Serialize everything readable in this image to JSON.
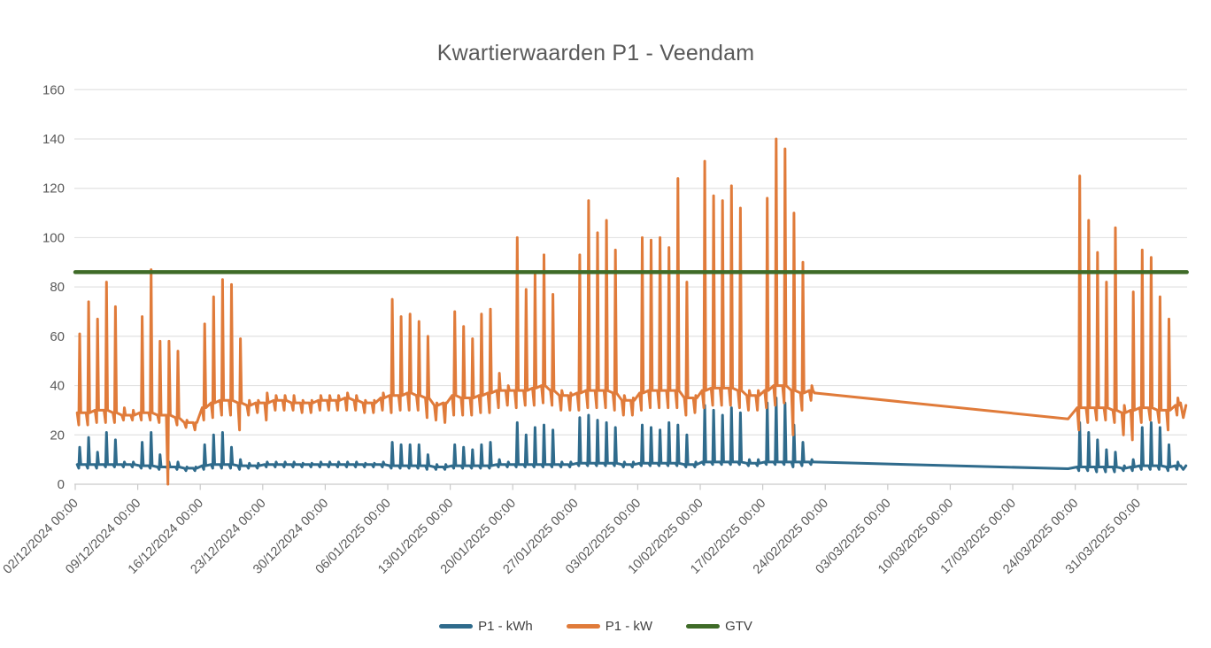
{
  "chart_data": {
    "type": "line",
    "title": "Kwartierwaarden P1 - Veendam",
    "grid": "horizontal",
    "x_axis": {
      "unit": "date-time",
      "tick_interval_days": 7,
      "day0_date": "02/12/2024",
      "range_days": [
        0,
        124.6
      ],
      "label_rotation_deg": -45,
      "tick_labels": [
        "02/12/2024 00:00",
        "09/12/2024 00:00",
        "16/12/2024 00:00",
        "23/12/2024 00:00",
        "30/12/2024 00:00",
        "06/01/2025 00:00",
        "13/01/2025 00:00",
        "20/01/2025 00:00",
        "27/01/2025 00:00",
        "03/02/2025 00:00",
        "10/02/2025 00:00",
        "17/02/2025 00:00",
        "24/02/2025 00:00",
        "03/03/2025 00:00",
        "10/03/2025 00:00",
        "17/03/2025 00:00",
        "24/03/2025 00:00",
        "31/03/2025 00:00"
      ]
    },
    "y_axis": {
      "min": 0,
      "max": 160,
      "tick_step": 20,
      "tick_labels": [
        "0",
        "20",
        "40",
        "60",
        "80",
        "100",
        "120",
        "140",
        "160"
      ]
    },
    "legend": {
      "position": "bottom",
      "entries": [
        {
          "label": "P1 - kWh",
          "color": "#2F6B8C"
        },
        {
          "label": "P1 - kW",
          "color": "#E07B3A"
        },
        {
          "label": "GTV",
          "color": "#3F6B28"
        }
      ]
    },
    "note": "day records are [day,dailyLow,dailyPeak,base]; 2-item entries are direct [day,value] points; gap in measurements between day 82.8 and 111.2",
    "series": [
      {
        "name": "P1 - kWh",
        "color": "#2F6B8C",
        "width": 3,
        "days": [
          [
            0,
            6.5,
            15,
            8
          ],
          [
            1,
            6.5,
            19,
            8
          ],
          [
            2,
            6.5,
            13,
            8
          ],
          [
            3,
            7,
            21,
            8
          ],
          [
            4,
            7,
            18,
            8
          ],
          [
            5,
            7,
            9,
            8
          ],
          [
            6,
            7,
            9,
            8
          ],
          [
            7,
            6.5,
            17,
            7.5
          ],
          [
            8,
            6.5,
            21,
            7.5
          ],
          [
            9,
            6,
            12,
            7
          ],
          [
            10,
            6,
            9,
            7
          ],
          [
            11,
            6,
            9,
            7
          ],
          [
            12,
            5.5,
            7,
            6.5
          ],
          [
            13,
            5.5,
            7,
            6.5
          ],
          [
            14,
            6,
            16,
            7.5
          ],
          [
            15,
            6.5,
            20,
            8
          ],
          [
            16,
            6.5,
            21,
            8
          ],
          [
            17,
            6.5,
            15,
            8
          ],
          [
            18,
            6,
            10,
            7.5
          ],
          [
            19,
            6.5,
            8.5,
            7.5
          ],
          [
            20,
            6.5,
            8.5,
            7.5
          ],
          [
            21,
            7,
            9,
            8
          ],
          [
            22,
            7,
            9,
            8
          ],
          [
            23,
            7,
            9,
            8
          ],
          [
            24,
            7,
            9,
            8
          ],
          [
            25,
            7,
            8.5,
            8
          ],
          [
            26,
            7,
            8.5,
            8
          ],
          [
            27,
            7,
            9,
            8
          ],
          [
            28,
            7,
            9,
            8
          ],
          [
            29,
            7,
            9,
            8
          ],
          [
            30,
            7,
            9,
            8
          ],
          [
            31,
            7,
            9,
            8
          ],
          [
            32,
            7,
            8.5,
            8
          ],
          [
            33,
            7,
            8.5,
            8
          ],
          [
            34,
            7,
            9,
            8
          ],
          [
            35,
            6.5,
            17,
            7.5
          ],
          [
            36,
            6.5,
            16,
            7.5
          ],
          [
            37,
            6.5,
            16,
            7.5
          ],
          [
            38,
            6.5,
            16,
            7.5
          ],
          [
            39,
            6,
            12,
            7.5
          ],
          [
            40,
            6,
            8,
            7
          ],
          [
            41,
            6,
            8,
            7
          ],
          [
            42,
            6.5,
            16,
            7.5
          ],
          [
            43,
            6.5,
            15,
            7.5
          ],
          [
            44,
            6.5,
            14,
            7.5
          ],
          [
            45,
            6.5,
            16,
            7.5
          ],
          [
            46,
            6.5,
            17,
            7.5
          ],
          [
            47,
            7,
            10,
            8
          ],
          [
            48,
            7,
            9,
            8
          ],
          [
            49,
            7,
            25,
            8
          ],
          [
            50,
            7,
            20,
            8
          ],
          [
            51,
            7,
            23,
            8
          ],
          [
            52,
            7,
            24,
            8
          ],
          [
            53,
            7,
            22,
            8
          ],
          [
            54,
            7,
            9,
            8
          ],
          [
            55,
            7,
            9,
            8
          ],
          [
            56,
            7.5,
            27,
            8.5
          ],
          [
            57,
            7.5,
            28,
            8.5
          ],
          [
            58,
            7.5,
            26,
            8.5
          ],
          [
            59,
            7.5,
            25,
            8.5
          ],
          [
            60,
            7.5,
            23,
            8.5
          ],
          [
            61,
            7,
            9,
            8
          ],
          [
            62,
            7,
            9,
            8
          ],
          [
            63,
            7.5,
            24,
            8.5
          ],
          [
            64,
            7.5,
            23,
            8.5
          ],
          [
            65,
            7.5,
            22,
            8.5
          ],
          [
            66,
            7.5,
            25,
            8.5
          ],
          [
            67,
            7.5,
            24,
            8.5
          ],
          [
            68,
            7,
            20,
            8
          ],
          [
            69,
            7,
            9,
            8
          ],
          [
            70,
            8,
            32,
            9
          ],
          [
            71,
            8,
            30,
            9
          ],
          [
            72,
            8,
            28,
            9
          ],
          [
            73,
            8,
            31,
            9
          ],
          [
            74,
            8,
            29,
            9
          ],
          [
            75,
            7.5,
            10,
            8.5
          ],
          [
            76,
            7.5,
            10,
            8.5
          ],
          [
            77,
            8,
            33,
            9
          ],
          [
            78,
            8,
            35,
            9
          ],
          [
            79,
            8,
            33,
            9
          ],
          [
            80,
            7,
            24,
            9
          ],
          [
            81,
            7.5,
            17,
            9
          ],
          [
            82,
            8,
            10,
            9
          ],
          [
            82.8,
            9
          ],
          [
            111.2,
            6.3
          ],
          [
            112,
            5.5,
            25,
            7
          ],
          [
            113,
            5.5,
            21,
            7
          ],
          [
            114,
            5,
            18,
            7
          ],
          [
            115,
            5,
            14,
            7
          ],
          [
            116,
            5,
            13,
            7
          ],
          [
            117,
            5.5,
            7.5,
            6.5
          ],
          [
            118,
            5.5,
            10,
            7
          ],
          [
            119,
            6,
            23,
            7.5
          ],
          [
            120,
            6,
            25,
            7.5
          ],
          [
            121,
            6,
            23,
            7.5
          ],
          [
            122,
            5.5,
            16,
            7
          ],
          [
            123,
            6,
            9,
            7.5
          ],
          [
            123.8,
            7.5
          ],
          [
            124.1,
            6
          ],
          [
            124.4,
            7.5
          ]
        ]
      },
      {
        "name": "P1 - kW",
        "color": "#E07B3A",
        "width": 3,
        "days": [
          [
            0,
            24,
            61,
            29
          ],
          [
            1,
            24,
            74,
            29
          ],
          [
            2,
            25,
            67,
            30
          ],
          [
            3,
            25,
            82,
            30
          ],
          [
            4,
            25,
            72,
            29
          ],
          [
            5,
            26,
            31,
            28
          ],
          [
            6,
            26,
            30,
            28
          ],
          [
            7,
            26,
            68,
            29
          ],
          [
            8,
            26,
            87,
            29
          ],
          [
            9,
            25,
            58,
            28
          ],
          [
            10.2,
            28
          ],
          [
            10.38,
            0
          ],
          [
            10.5,
            58
          ],
          [
            10.65,
            28
          ],
          [
            11,
            24,
            54,
            27
          ],
          [
            12,
            23,
            26,
            25
          ],
          [
            13,
            22,
            25,
            25
          ],
          [
            14,
            26,
            65,
            31
          ],
          [
            15,
            27,
            76,
            33
          ],
          [
            16,
            28,
            83,
            34
          ],
          [
            17,
            28,
            81,
            34
          ],
          [
            18,
            22,
            59,
            33
          ],
          [
            19,
            28,
            34,
            32
          ],
          [
            20,
            29,
            34,
            33
          ],
          [
            21,
            26,
            37,
            33
          ],
          [
            22,
            30,
            36,
            34
          ],
          [
            23,
            30,
            36,
            34
          ],
          [
            24,
            30,
            36,
            33
          ],
          [
            25,
            29,
            34,
            33
          ],
          [
            26,
            29,
            34,
            33
          ],
          [
            27,
            30,
            36,
            34
          ],
          [
            28,
            30,
            36,
            34
          ],
          [
            29,
            30,
            36,
            34
          ],
          [
            30,
            30,
            37,
            35
          ],
          [
            31,
            30,
            36,
            34
          ],
          [
            32,
            29,
            34,
            33
          ],
          [
            33,
            29,
            34,
            33
          ],
          [
            34,
            30,
            37,
            35
          ],
          [
            35,
            29,
            75,
            36
          ],
          [
            36,
            30,
            68,
            36
          ],
          [
            37,
            30,
            69,
            37
          ],
          [
            38,
            30,
            66,
            36
          ],
          [
            39,
            27,
            60,
            35
          ],
          [
            40,
            26,
            33,
            32
          ],
          [
            41,
            25,
            33,
            33
          ],
          [
            42,
            28,
            70,
            36
          ],
          [
            43,
            28,
            64,
            35
          ],
          [
            44,
            28,
            59,
            35
          ],
          [
            45,
            29,
            69,
            36
          ],
          [
            46,
            29,
            71,
            37
          ],
          [
            47,
            31,
            45,
            38
          ],
          [
            48,
            32,
            40,
            38
          ],
          [
            49,
            31,
            100,
            38
          ],
          [
            50,
            32,
            79,
            38
          ],
          [
            51,
            32,
            85,
            39
          ],
          [
            52,
            33,
            93,
            40
          ],
          [
            53,
            32,
            77,
            38
          ],
          [
            54,
            30,
            38,
            36
          ],
          [
            55,
            30,
            37,
            36
          ],
          [
            56,
            30,
            93,
            37
          ],
          [
            57,
            31,
            115,
            38
          ],
          [
            58,
            31,
            102,
            38
          ],
          [
            59,
            31,
            107,
            38
          ],
          [
            60,
            30,
            95,
            37
          ],
          [
            61,
            28,
            36,
            34
          ],
          [
            62,
            28,
            35,
            34
          ],
          [
            63,
            30,
            100,
            37
          ],
          [
            64,
            31,
            99,
            38
          ],
          [
            65,
            31,
            100,
            38
          ],
          [
            66,
            31,
            96,
            38
          ],
          [
            67,
            31,
            124,
            38
          ],
          [
            68,
            28,
            82,
            35
          ],
          [
            69,
            29,
            36,
            35
          ],
          [
            70,
            31,
            131,
            38
          ],
          [
            71,
            32,
            117,
            39
          ],
          [
            72,
            32,
            115,
            39
          ],
          [
            73,
            32,
            121,
            39
          ],
          [
            74,
            31,
            112,
            38
          ],
          [
            75,
            30,
            38,
            36
          ],
          [
            76,
            30,
            38,
            36
          ],
          [
            77,
            31,
            116,
            38
          ],
          [
            78,
            32,
            140,
            40
          ],
          [
            79,
            33,
            136,
            40
          ],
          [
            80,
            20,
            110,
            38
          ],
          [
            81,
            30,
            90,
            37
          ],
          [
            82,
            34,
            40,
            38
          ],
          [
            82.8,
            37
          ],
          [
            111.2,
            26.5
          ],
          [
            112,
            22,
            125,
            31
          ],
          [
            113,
            25,
            107,
            31
          ],
          [
            114,
            26,
            94,
            31
          ],
          [
            115,
            26,
            82,
            31
          ],
          [
            116,
            25,
            104,
            30
          ],
          [
            117,
            20,
            32,
            29
          ],
          [
            118,
            18,
            78,
            30
          ],
          [
            119,
            25,
            95,
            31
          ],
          [
            120,
            26,
            92,
            31
          ],
          [
            121,
            25,
            76,
            30
          ],
          [
            122,
            22,
            67,
            30
          ],
          [
            123,
            28,
            35,
            32
          ],
          [
            123.8,
            33
          ],
          [
            124.1,
            27
          ],
          [
            124.4,
            32
          ]
        ]
      },
      {
        "name": "GTV",
        "color": "#3F6B28",
        "width": 4.5,
        "constant_value": 86,
        "x_start_day": 0,
        "x_end_day": 124.5
      }
    ],
    "style": {
      "gridline_color": "#E2E2E2",
      "axis_color": "#C9C9C9",
      "tick_label_color": "#595959",
      "title_color": "#595959"
    }
  }
}
